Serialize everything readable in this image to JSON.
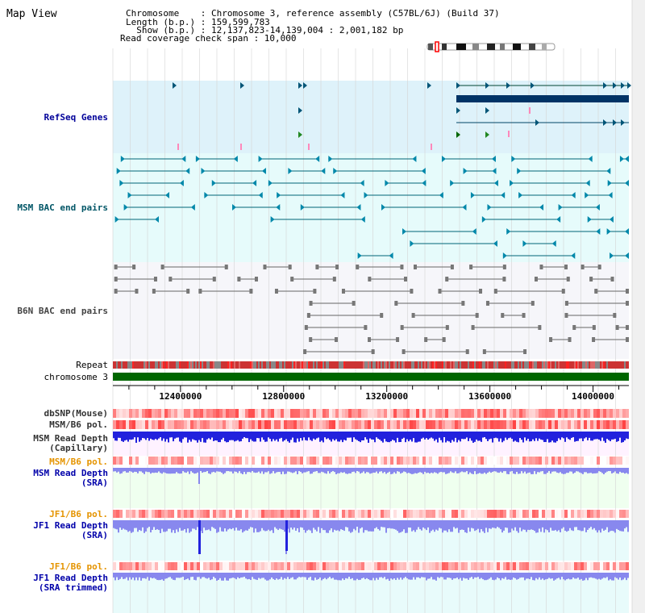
{
  "view_title": "Map View",
  "info": {
    "chromosome_line": "Chromosome    : Chromosome 3, reference assembly (C57BL/6J) (Build 37)",
    "length_line": "Length (b.p.) : 159,599,783",
    "show_line": "  Show (b.p.) : 12,137,823-14,139,004 : 2,001,182 bp",
    "coverage_line": "Read coverage check span : 10,000"
  },
  "tracks": {
    "refseq": "RefSeq Genes",
    "msm_bac": "MSM BAC end pairs",
    "b6n_bac": "B6N BAC end pairs",
    "repeat": "Repeat",
    "chromosome": "chromosome 3",
    "dbsnp": "dbSNP(Mouse)",
    "msm_b6_pol_1": "MSM/B6 pol.",
    "msm_read_depth_cap_1": "MSM Read Depth",
    "msm_read_depth_cap_2": "(Capillary)",
    "msm_b6_pol_2": "MSM/B6 pol.",
    "msm_read_depth_sra_1": "MSM Read Depth",
    "msm_read_depth_sra_2": "(SRA)",
    "jf1_b6_pol_1": "JF1/B6 pol.",
    "jf1_read_depth_sra_1": "JF1 Read Depth",
    "jf1_read_depth_sra_2": "(SRA)",
    "jf1_b6_pol_2": "JF1/B6 pol.",
    "jf1_read_depth_trim_1": "JF1 Read Depth",
    "jf1_read_depth_trim_2": "(SRA trimmed)"
  },
  "axis": {
    "ticks": [
      "12400000",
      "12800000",
      "13200000",
      "13600000",
      "14000000"
    ]
  },
  "colors": {
    "refseq_bg": "#def2fa",
    "bac_bg": "#e6fbfb",
    "b6n_bg": "#f4f4fa",
    "chromosome": "#006600",
    "gene": "#003366",
    "msm_line": "#006677",
    "b6n_line": "#666666",
    "depth_blue": "#2222dd",
    "depth_light": "#8888ee"
  }
}
